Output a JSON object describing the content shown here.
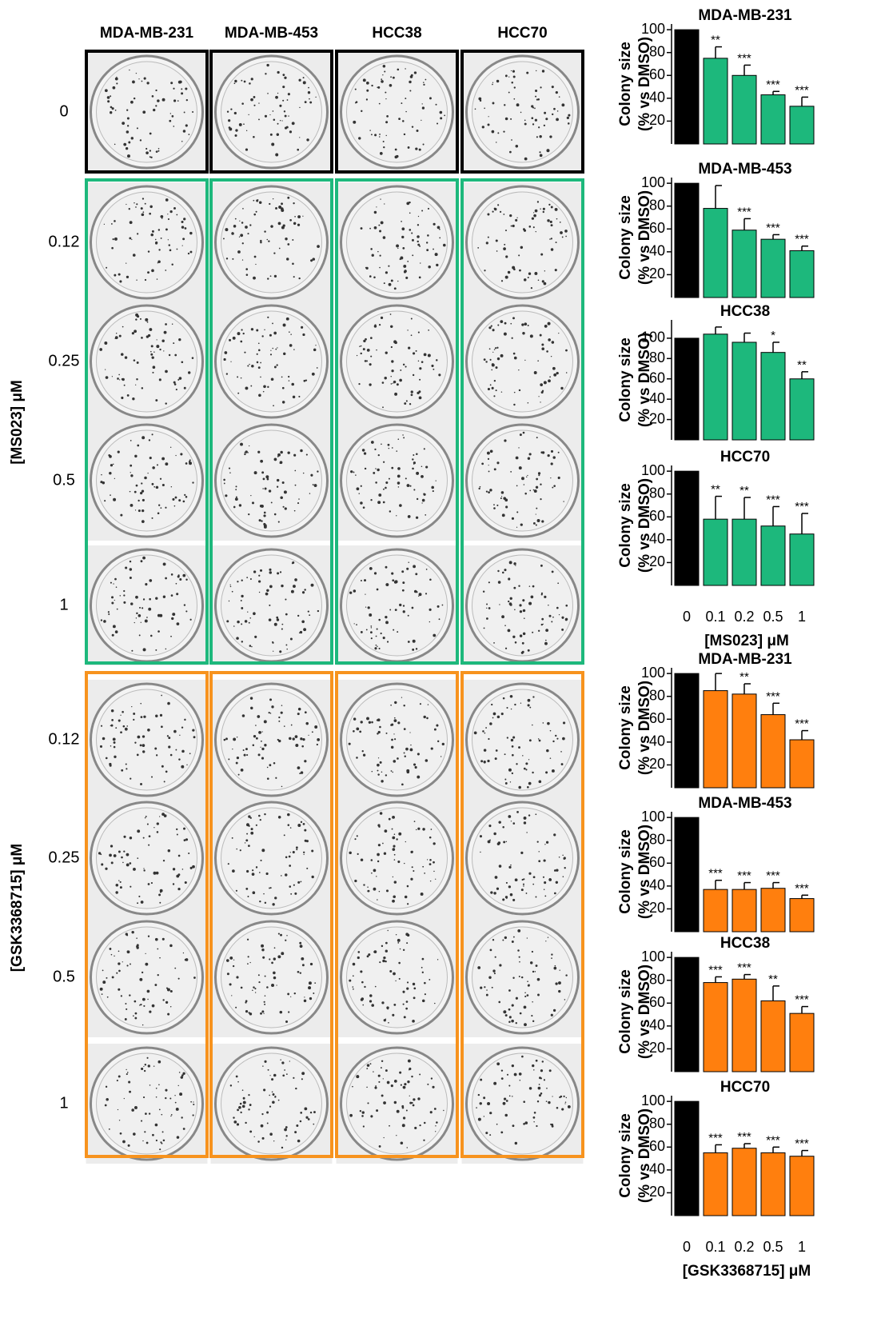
{
  "plates": {
    "columns": [
      "MDA-MB-231",
      "MDA-MB-453",
      "HCC38",
      "HCC70"
    ],
    "control_rows": [
      "0"
    ],
    "ms023_rows": [
      "0.12",
      "0.25",
      "0.5",
      "1"
    ],
    "gsk_rows": [
      "0.12",
      "0.25",
      "0.5",
      "1"
    ],
    "ms023_label": "[MS023] μM",
    "gsk_label": "[GSK3368715] μM"
  },
  "chart_data": [
    {
      "type": "bar",
      "title": "MDA-MB-231",
      "ylabel": [
        "Colony size",
        "(% vs DMSO)"
      ],
      "categories": [
        null,
        null,
        null,
        null,
        null
      ],
      "values": [
        100,
        75,
        60,
        43,
        33
      ],
      "errors": [
        null,
        10,
        9,
        3,
        8
      ],
      "annotations": [
        null,
        "**",
        "***",
        "***",
        "***"
      ],
      "colors": [
        "#000000",
        "#1db87c",
        "#1db87c",
        "#1db87c",
        "#1db87c"
      ],
      "ylim": [
        0,
        105
      ],
      "yticks": [
        20,
        40,
        60,
        80,
        100
      ]
    },
    {
      "type": "bar",
      "title": "MDA-MB-453",
      "ylabel": [
        "Colony size",
        "(% vs DMSO)"
      ],
      "categories": [
        null,
        null,
        null,
        null,
        null
      ],
      "values": [
        100,
        78,
        59,
        51,
        41
      ],
      "errors": [
        null,
        20,
        10,
        4,
        4
      ],
      "annotations": [
        null,
        null,
        "***",
        "***",
        "***"
      ],
      "colors": [
        "#000000",
        "#1db87c",
        "#1db87c",
        "#1db87c",
        "#1db87c"
      ],
      "ylim": [
        0,
        105
      ],
      "yticks": [
        20,
        40,
        60,
        80,
        100
      ]
    },
    {
      "type": "bar",
      "title": "HCC38",
      "ylabel": [
        "Colony size",
        "(% vs DMSO)"
      ],
      "categories": [
        null,
        null,
        null,
        null,
        null
      ],
      "values": [
        100,
        104,
        96,
        86,
        60
      ],
      "errors": [
        null,
        7,
        9,
        10,
        7
      ],
      "annotations": [
        null,
        null,
        null,
        "*",
        "**"
      ],
      "colors": [
        "#000000",
        "#1db87c",
        "#1db87c",
        "#1db87c",
        "#1db87c"
      ],
      "ylim": [
        0,
        118
      ],
      "yticks": [
        20,
        40,
        60,
        80,
        100
      ]
    },
    {
      "type": "bar",
      "title": "HCC70",
      "ylabel": [
        "Colony size",
        "(% vs DMSO)"
      ],
      "categories": [
        "0",
        "0.1",
        "0.2",
        "0.5",
        "1"
      ],
      "xlabel": "[MS023] μM",
      "values": [
        100,
        58,
        58,
        52,
        45
      ],
      "errors": [
        null,
        20,
        19,
        17,
        18
      ],
      "annotations": [
        null,
        "**",
        "**",
        "***",
        "***"
      ],
      "colors": [
        "#000000",
        "#1db87c",
        "#1db87c",
        "#1db87c",
        "#1db87c"
      ],
      "ylim": [
        0,
        105
      ],
      "yticks": [
        20,
        40,
        60,
        80,
        100
      ]
    },
    {
      "type": "bar",
      "title": "MDA-MB-231",
      "ylabel": [
        "Colony size",
        "(% vs DMSO)"
      ],
      "categories": [
        null,
        null,
        null,
        null,
        null
      ],
      "values": [
        100,
        85,
        82,
        64,
        42
      ],
      "errors": [
        null,
        15,
        9,
        10,
        8
      ],
      "annotations": [
        null,
        null,
        "**",
        "***",
        "***"
      ],
      "colors": [
        "#000000",
        "#ff7f0e",
        "#ff7f0e",
        "#ff7f0e",
        "#ff7f0e"
      ],
      "ylim": [
        0,
        105
      ],
      "yticks": [
        20,
        40,
        60,
        80,
        100
      ]
    },
    {
      "type": "bar",
      "title": "MDA-MB-453",
      "ylabel": [
        "Colony size",
        "(% vs DMSO)"
      ],
      "categories": [
        null,
        null,
        null,
        null,
        null
      ],
      "values": [
        100,
        37,
        37,
        38,
        29
      ],
      "errors": [
        null,
        8,
        6,
        5,
        3
      ],
      "annotations": [
        null,
        "***",
        "***",
        "***",
        "***"
      ],
      "colors": [
        "#000000",
        "#ff7f0e",
        "#ff7f0e",
        "#ff7f0e",
        "#ff7f0e"
      ],
      "ylim": [
        0,
        105
      ],
      "yticks": [
        20,
        40,
        60,
        80,
        100
      ]
    },
    {
      "type": "bar",
      "title": "HCC38",
      "ylabel": [
        "Colony size",
        "(% vs DMSO)"
      ],
      "categories": [
        null,
        null,
        null,
        null,
        null
      ],
      "values": [
        100,
        78,
        81,
        62,
        51
      ],
      "errors": [
        null,
        5,
        4,
        13,
        6
      ],
      "annotations": [
        null,
        "***",
        "***",
        "**",
        "***"
      ],
      "colors": [
        "#000000",
        "#ff7f0e",
        "#ff7f0e",
        "#ff7f0e",
        "#ff7f0e"
      ],
      "ylim": [
        0,
        105
      ],
      "yticks": [
        20,
        40,
        60,
        80,
        100
      ]
    },
    {
      "type": "bar",
      "title": "HCC70",
      "ylabel": [
        "Colony size",
        "(% vs DMSO)"
      ],
      "categories": [
        "0",
        "0.1",
        "0.2",
        "0.5",
        "1"
      ],
      "xlabel": "[GSK3368715] μM",
      "values": [
        100,
        55,
        59,
        55,
        52
      ],
      "errors": [
        null,
        7,
        4,
        5,
        5
      ],
      "annotations": [
        null,
        "***",
        "***",
        "***",
        "***"
      ],
      "colors": [
        "#000000",
        "#ff7f0e",
        "#ff7f0e",
        "#ff7f0e",
        "#ff7f0e"
      ],
      "ylim": [
        0,
        105
      ],
      "yticks": [
        20,
        40,
        60,
        80,
        100
      ]
    }
  ]
}
